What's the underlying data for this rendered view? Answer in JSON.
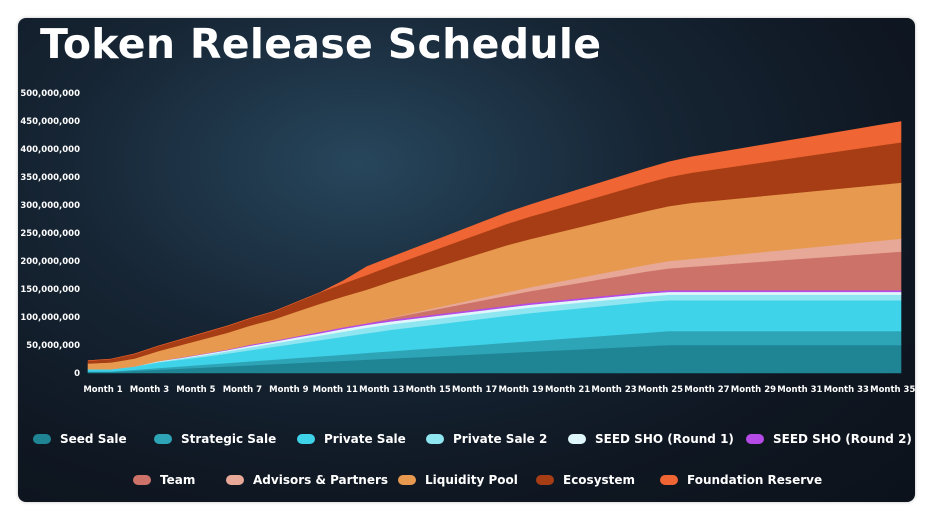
{
  "chart_data": {
    "type": "area",
    "stacked": true,
    "title": "Token Release Schedule",
    "ylim": [
      0,
      500000000
    ],
    "y_ticks": [
      "0",
      "50,000,000",
      "100,000,000",
      "150,000,000",
      "200,000,000",
      "250,000,000",
      "300,000,000",
      "350,000,000",
      "400,000,000",
      "450,000,000",
      "500,000,000"
    ],
    "x_ticks": [
      "Month 1",
      "Month 3",
      "Month 5",
      "Month 7",
      "Month 9",
      "Month 11",
      "Month 13",
      "Month 15",
      "Month 17",
      "Month 19",
      "Month 21",
      "Month 23",
      "Month 25",
      "Month 27",
      "Month 29",
      "Month 31",
      "Month 33",
      "Month 35"
    ],
    "x": [
      "Month 1",
      "Month 2",
      "Month 3",
      "Month 4",
      "Month 5",
      "Month 6",
      "Month 7",
      "Month 8",
      "Month 9",
      "Month 10",
      "Month 11",
      "Month 12",
      "Month 13",
      "Month 14",
      "Month 15",
      "Month 16",
      "Month 17",
      "Month 18",
      "Month 19",
      "Month 20",
      "Month 21",
      "Month 22",
      "Month 23",
      "Month 24",
      "Month 25",
      "Month 26",
      "Month 27",
      "Month 28",
      "Month 29",
      "Month 30",
      "Month 31",
      "Month 32",
      "Month 33",
      "Month 34",
      "Month 35",
      "Month 36"
    ],
    "legend_placement": "bottom",
    "grid": false,
    "series": [
      {
        "name": "Seed Sale",
        "color": "#1f8595",
        "values": [
          2000000,
          2000000,
          4000000,
          6000000,
          8000000,
          10000000,
          12000000,
          14000000,
          16000000,
          18000000,
          20000000,
          22000000,
          24000000,
          26000000,
          28000000,
          30000000,
          32000000,
          34000000,
          36000000,
          38000000,
          40000000,
          42000000,
          44000000,
          46000000,
          48000000,
          50000000,
          50000000,
          50000000,
          50000000,
          50000000,
          50000000,
          50000000,
          50000000,
          50000000,
          50000000,
          50000000
        ]
      },
      {
        "name": "Strategic Sale",
        "color": "#2ea5b7",
        "values": [
          1000000,
          1000000,
          2000000,
          3000000,
          4000000,
          5000000,
          6000000,
          7000000,
          8000000,
          9000000,
          10000000,
          11000000,
          12000000,
          13000000,
          14000000,
          15000000,
          16000000,
          17000000,
          18000000,
          19000000,
          20000000,
          21000000,
          22000000,
          23000000,
          24000000,
          25000000,
          25000000,
          25000000,
          25000000,
          25000000,
          25000000,
          25000000,
          25000000,
          25000000,
          25000000,
          25000000
        ]
      },
      {
        "name": "Private Sale",
        "color": "#3fd3ea",
        "values": [
          4000000,
          4000000,
          6000000,
          10000000,
          12000000,
          14000000,
          17000000,
          20000000,
          23000000,
          26000000,
          29000000,
          32000000,
          35000000,
          38000000,
          40000000,
          42000000,
          44000000,
          46000000,
          48000000,
          50000000,
          51000000,
          52000000,
          53000000,
          54000000,
          55000000,
          55000000,
          55000000,
          55000000,
          55000000,
          55000000,
          55000000,
          55000000,
          55000000,
          55000000,
          55000000,
          55000000
        ]
      },
      {
        "name": "Private Sale 2",
        "color": "#8fe6f1",
        "values": [
          0,
          0,
          0,
          1000000,
          2000000,
          3000000,
          4000000,
          5000000,
          6000000,
          7000000,
          8000000,
          9000000,
          10000000,
          10000000,
          10000000,
          10000000,
          10000000,
          10000000,
          10000000,
          10000000,
          10000000,
          10000000,
          10000000,
          10000000,
          10000000,
          10000000,
          10000000,
          10000000,
          10000000,
          10000000,
          10000000,
          10000000,
          10000000,
          10000000,
          10000000,
          10000000
        ]
      },
      {
        "name": "SEED SHO (Round 1)",
        "color": "#dff6fa",
        "values": [
          0,
          0,
          0,
          1000000,
          1000000,
          2000000,
          2000000,
          3000000,
          3000000,
          4000000,
          4000000,
          5000000,
          5000000,
          5000000,
          5000000,
          5000000,
          5000000,
          5000000,
          5000000,
          5000000,
          5000000,
          5000000,
          5000000,
          5000000,
          5000000,
          5000000,
          5000000,
          5000000,
          5000000,
          5000000,
          5000000,
          5000000,
          5000000,
          5000000,
          5000000,
          5000000
        ]
      },
      {
        "name": "SEED SHO (Round 2)",
        "color": "#b64ae6",
        "values": [
          0,
          0,
          0,
          0,
          1000000,
          1000000,
          1000000,
          2000000,
          2000000,
          2000000,
          3000000,
          3000000,
          3000000,
          3000000,
          3000000,
          3000000,
          3000000,
          3000000,
          3000000,
          3000000,
          3000000,
          3000000,
          3000000,
          3000000,
          3000000,
          3000000,
          3000000,
          3000000,
          3000000,
          3000000,
          3000000,
          3000000,
          3000000,
          3000000,
          3000000,
          3000000
        ]
      },
      {
        "name": "Team",
        "color": "#cd7268",
        "values": [
          0,
          0,
          0,
          0,
          0,
          0,
          0,
          0,
          0,
          0,
          0,
          0,
          0,
          3000000,
          6000000,
          9000000,
          12000000,
          15000000,
          18000000,
          21000000,
          24000000,
          27000000,
          30000000,
          33000000,
          36000000,
          39000000,
          42000000,
          45000000,
          48000000,
          51000000,
          54000000,
          57000000,
          60000000,
          63000000,
          66000000,
          69000000
        ]
      },
      {
        "name": "Advisors & Partners",
        "color": "#e7a898",
        "values": [
          0,
          0,
          0,
          0,
          0,
          0,
          0,
          0,
          0,
          0,
          0,
          0,
          0,
          1000000,
          2000000,
          3000000,
          4000000,
          5000000,
          6000000,
          7000000,
          8000000,
          9000000,
          10000000,
          11000000,
          12000000,
          13000000,
          14000000,
          15000000,
          16000000,
          17000000,
          18000000,
          19000000,
          20000000,
          21000000,
          22000000,
          23000000
        ]
      },
      {
        "name": "Liquidity Pool",
        "color": "#e79a4f",
        "values": [
          10000000,
          12000000,
          14000000,
          18000000,
          22000000,
          26000000,
          30000000,
          34000000,
          38000000,
          44000000,
          50000000,
          55000000,
          60000000,
          64000000,
          68000000,
          72000000,
          76000000,
          80000000,
          84000000,
          86000000,
          88000000,
          90000000,
          92000000,
          94000000,
          96000000,
          98000000,
          100000000,
          100000000,
          100000000,
          100000000,
          100000000,
          100000000,
          100000000,
          100000000,
          100000000,
          100000000
        ]
      },
      {
        "name": "Ecosystem",
        "color": "#a63d14",
        "values": [
          5000000,
          6000000,
          8000000,
          9000000,
          10000000,
          11000000,
          12000000,
          13000000,
          14000000,
          17000000,
          20000000,
          23000000,
          26000000,
          28000000,
          30000000,
          32000000,
          34000000,
          36000000,
          38000000,
          40000000,
          42000000,
          44000000,
          46000000,
          48000000,
          50000000,
          52000000,
          54000000,
          56000000,
          58000000,
          60000000,
          62000000,
          64000000,
          66000000,
          68000000,
          70000000,
          72000000
        ]
      },
      {
        "name": "Foundation Reserve",
        "color": "#ef6533",
        "values": [
          0,
          0,
          0,
          0,
          0,
          0,
          0,
          0,
          0,
          0,
          0,
          5000000,
          15000000,
          15000000,
          16000000,
          17000000,
          18000000,
          19000000,
          20000000,
          21000000,
          22000000,
          23000000,
          24000000,
          25000000,
          26000000,
          27000000,
          28000000,
          29000000,
          30000000,
          31000000,
          32000000,
          33000000,
          34000000,
          35000000,
          36000000,
          37000000
        ]
      }
    ]
  }
}
